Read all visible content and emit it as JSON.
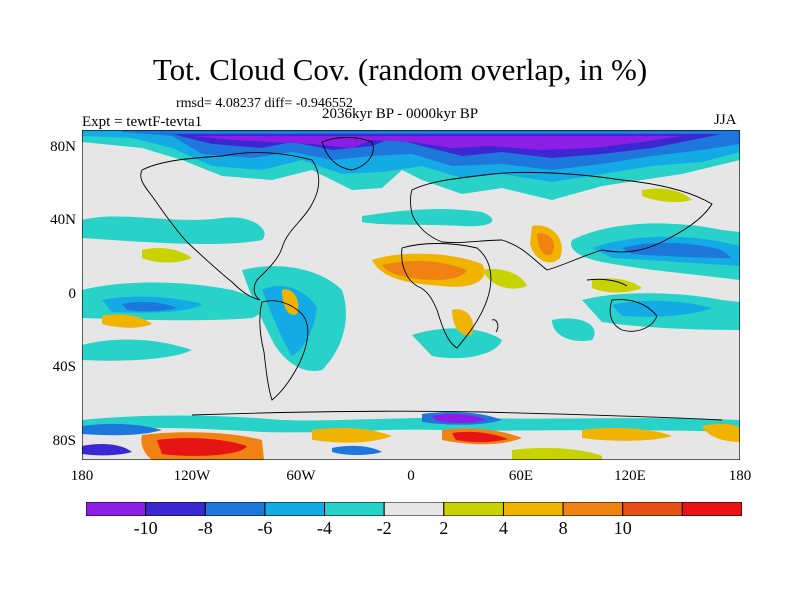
{
  "title": "Tot. Cloud Cov. (random overlap, in %)",
  "stats": "rmsd= 4.08237 diff= -0.946552",
  "period": "2036kyr BP - 0000kyr BP",
  "experiment": "Expt = tewtF-tevta1",
  "season": "JJA",
  "lat_labels": [
    "80N",
    "40N",
    "0",
    "40S",
    "80S"
  ],
  "lon_labels": [
    "180",
    "120W",
    "60W",
    "0",
    "60E",
    "120E",
    "180"
  ],
  "colorbar": {
    "colors": [
      "#8c1ee6",
      "#3c28d2",
      "#1e78dc",
      "#14aae6",
      "#28d2c8",
      "#e6e6e6",
      "#c8d200",
      "#f0b400",
      "#f08214",
      "#e65014",
      "#e61414"
    ],
    "labels": [
      "-10",
      "-8",
      "-6",
      "-4",
      "-2",
      "2",
      "4",
      "8",
      "10"
    ]
  }
}
